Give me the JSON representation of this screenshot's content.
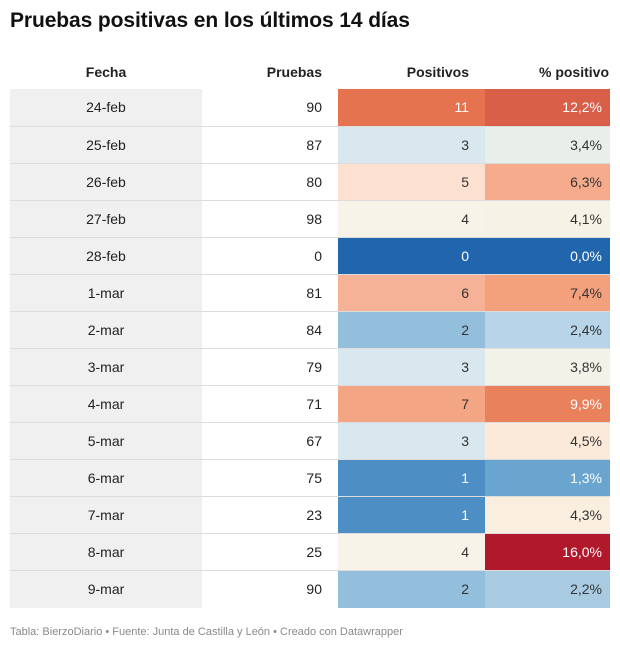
{
  "title": "Pruebas positivas en los últimos 14 días",
  "headers": {
    "fecha": "Fecha",
    "pruebas": "Pruebas",
    "positivos": "Positivos",
    "pct": "% positivo"
  },
  "footer": "Tabla: BierzoDiario • Fuente: Junta de Castilla y León • Creado con Datawrapper",
  "chart_data": {
    "type": "table",
    "title": "Pruebas positivas en los últimos 14 días",
    "columns": [
      "Fecha",
      "Pruebas",
      "Positivos",
      "% positivo"
    ],
    "rows": [
      {
        "fecha": "24-feb",
        "pruebas": "90",
        "positivos": "11",
        "pct": "12,2%",
        "pos_color": "#e6734f",
        "pos_text": "#ffffff",
        "pct_color": "#d95f49",
        "pct_text": "#ffffff"
      },
      {
        "fecha": "25-feb",
        "pruebas": "87",
        "positivos": "3",
        "pct": "3,4%",
        "pos_color": "#d9e8ee",
        "pos_text": "#333333",
        "pct_color": "#e8eeea",
        "pct_text": "#333333"
      },
      {
        "fecha": "26-feb",
        "pruebas": "80",
        "positivos": "5",
        "pct": "6,3%",
        "pos_color": "#fde1d0",
        "pos_text": "#333333",
        "pct_color": "#f6ac8c",
        "pct_text": "#333333"
      },
      {
        "fecha": "27-feb",
        "pruebas": "98",
        "positivos": "4",
        "pct": "4,1%",
        "pos_color": "#f8f3e8",
        "pos_text": "#333333",
        "pct_color": "#f7f2e6",
        "pct_text": "#333333"
      },
      {
        "fecha": "28-feb",
        "pruebas": "0",
        "positivos": "0",
        "pct": "0,0%",
        "pos_color": "#2166ac",
        "pos_text": "#ffffff",
        "pct_color": "#2166ac",
        "pct_text": "#ffffff"
      },
      {
        "fecha": "1-mar",
        "pruebas": "81",
        "positivos": "6",
        "pct": "7,4%",
        "pos_color": "#f6b297",
        "pos_text": "#333333",
        "pct_color": "#f3a07c",
        "pct_text": "#333333"
      },
      {
        "fecha": "2-mar",
        "pruebas": "84",
        "positivos": "2",
        "pct": "2,4%",
        "pos_color": "#93bfdc",
        "pos_text": "#333333",
        "pct_color": "#b7d4e8",
        "pct_text": "#333333"
      },
      {
        "fecha": "3-mar",
        "pruebas": "79",
        "positivos": "3",
        "pct": "3,8%",
        "pos_color": "#d9e8ee",
        "pos_text": "#333333",
        "pct_color": "#f2f2e8",
        "pct_text": "#333333"
      },
      {
        "fecha": "4-mar",
        "pruebas": "71",
        "positivos": "7",
        "pct": "9,9%",
        "pos_color": "#f4a684",
        "pos_text": "#333333",
        "pct_color": "#e9825c",
        "pct_text": "#ffffff"
      },
      {
        "fecha": "5-mar",
        "pruebas": "67",
        "positivos": "3",
        "pct": "4,5%",
        "pos_color": "#d9e8ee",
        "pos_text": "#333333",
        "pct_color": "#fbe9da",
        "pct_text": "#333333"
      },
      {
        "fecha": "6-mar",
        "pruebas": "75",
        "positivos": "1",
        "pct": "1,3%",
        "pos_color": "#4d8fc5",
        "pos_text": "#ffffff",
        "pct_color": "#6aa5cf",
        "pct_text": "#ffffff"
      },
      {
        "fecha": "7-mar",
        "pruebas": "23",
        "positivos": "1",
        "pct": "4,3%",
        "pos_color": "#4d8fc5",
        "pos_text": "#ffffff",
        "pct_color": "#faeedf",
        "pct_text": "#333333"
      },
      {
        "fecha": "8-mar",
        "pruebas": "25",
        "positivos": "4",
        "pct": "16,0%",
        "pos_color": "#f8f3e8",
        "pos_text": "#333333",
        "pct_color": "#b2182b",
        "pct_text": "#ffffff"
      },
      {
        "fecha": "9-mar",
        "pruebas": "90",
        "positivos": "2",
        "pct": "2,2%",
        "pos_color": "#93bfdc",
        "pos_text": "#333333",
        "pct_color": "#a8cbe2",
        "pct_text": "#333333"
      }
    ]
  }
}
